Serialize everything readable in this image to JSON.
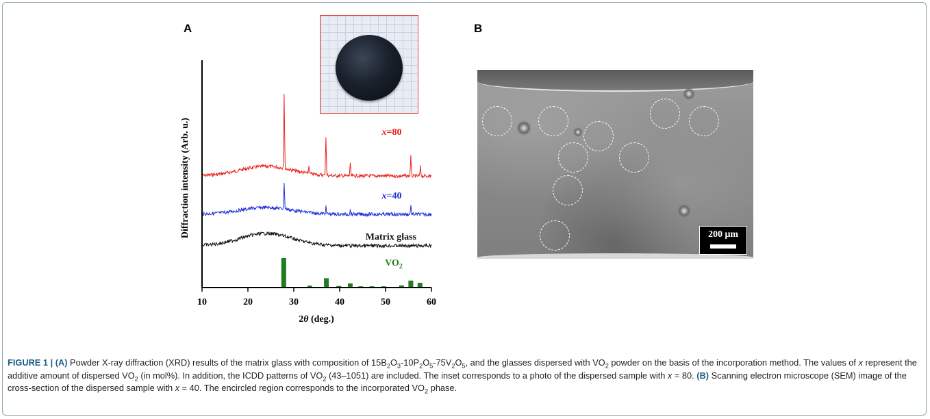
{
  "panels": {
    "a_label": "A",
    "b_label": "B"
  },
  "chart_data": {
    "type": "line",
    "xlabel": "2θ (deg.)",
    "xlabel_parts": [
      "2",
      "θ",
      " (deg.)"
    ],
    "ylabel": "Diffraction intensity (Arb. u.)",
    "xlim": [
      10,
      60
    ],
    "xticks": [
      10,
      20,
      30,
      40,
      50,
      60
    ],
    "y_scale": "arbitrary, stacked offsets",
    "grid": false,
    "series": [
      {
        "name": "x=80",
        "name_parts": [
          "x",
          "=80"
        ],
        "color": "#e8221d",
        "broad_hump_center": 24,
        "peaks": [
          [
            27.9,
            58
          ],
          [
            33.3,
            6
          ],
          [
            37.0,
            30
          ],
          [
            42.3,
            9
          ],
          [
            55.5,
            15
          ],
          [
            57.6,
            7
          ]
        ]
      },
      {
        "name": "x=40",
        "name_parts": [
          "x",
          "=40"
        ],
        "color": "#1f2fd6",
        "broad_hump_center": 24,
        "peaks": [
          [
            27.9,
            21
          ],
          [
            37.0,
            5
          ],
          [
            42.3,
            3
          ],
          [
            55.5,
            7
          ]
        ]
      },
      {
        "name": "Matrix glass",
        "color": "#111111",
        "broad_hump_center": 24,
        "peaks": []
      }
    ],
    "reference": {
      "name": "VO2",
      "name_parts": [
        "VO",
        "2"
      ],
      "color": "#1e7d1e",
      "bars": [
        [
          27.8,
          100
        ],
        [
          33.5,
          4
        ],
        [
          37.1,
          30
        ],
        [
          39.8,
          3
        ],
        [
          42.3,
          12
        ],
        [
          44.6,
          2
        ],
        [
          47.0,
          2
        ],
        [
          49.6,
          2
        ],
        [
          53.5,
          5
        ],
        [
          55.5,
          22
        ],
        [
          57.5,
          14
        ]
      ]
    }
  },
  "caption": {
    "figure_label": "FIGURE 1 | ",
    "a_tag": "(A)",
    "seg1": " Powder X-ray diffraction (XRD) results of the matrix glass with composition of 15B",
    "sub1": "2",
    "seg2": "O",
    "sub2": "3",
    "seg3": "-10P",
    "sub3": "2",
    "seg4": "O",
    "sub4": "5",
    "seg5": "-75V",
    "sub5": "2",
    "seg6": "O",
    "sub6": "5",
    "seg7": ", and the glasses dispersed with VO",
    "sub7": "2",
    "seg8": " powder on the basis of the incorporation method. The values of ",
    "italic_x1": "x",
    "seg9": " represent the additive amount of dispersed VO",
    "sub9": "2",
    "seg10": " (in mol%). In addition, the ICDD patterns of VO",
    "sub10": "2",
    "seg11": " (43–1051) are included. The inset corresponds to a photo of the dispersed sample with ",
    "italic_x2": "x",
    "seg12": " = 80. ",
    "b_tag": "(B)",
    "seg13": " Scanning electron microscope (SEM) image of the cross-section of the dispersed sample with ",
    "italic_x3": "x",
    "seg14": " = 40. The encircled region corresponds to the incorporated VO",
    "sub14": "2",
    "seg15": " phase."
  },
  "sem": {
    "scale_text": "200 μm"
  }
}
